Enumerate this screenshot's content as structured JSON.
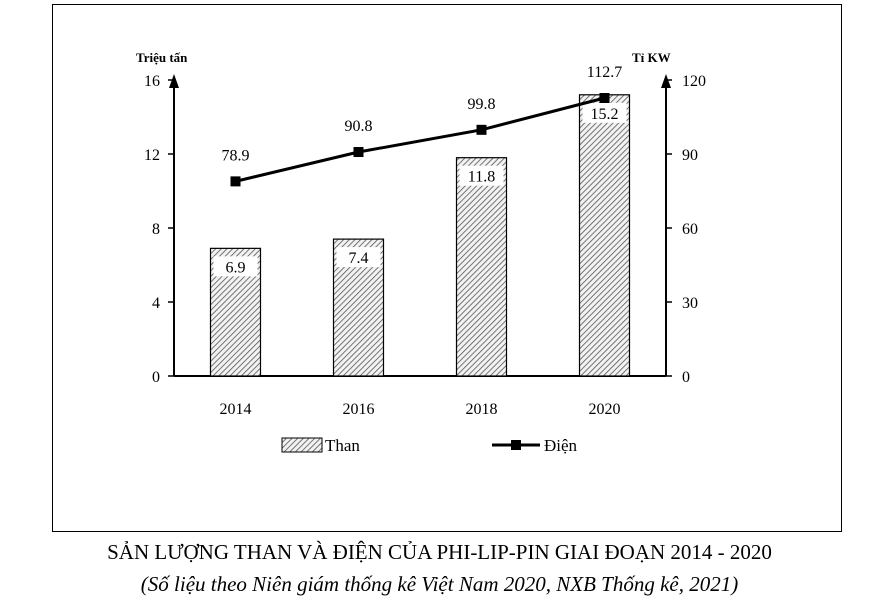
{
  "chart_data": {
    "type": "bar",
    "title": "SẢN LƯỢNG THAN VÀ ĐIỆN CỦA PHI-LIP-PIN GIAI ĐOẠN 2014 - 2020",
    "subtitle": "(Số liệu theo Niên giám thống kê Việt Nam 2020, NXB Thống kê, 2021)",
    "categories": [
      "2014",
      "2016",
      "2018",
      "2020"
    ],
    "y_left": {
      "label": "Triệu tấn",
      "ylim": [
        0,
        16
      ],
      "ticks": [
        0,
        4,
        8,
        12,
        16
      ]
    },
    "y_right": {
      "label": "Tỉ KW",
      "ylim": [
        0,
        120
      ],
      "ticks": [
        0,
        30,
        60,
        90,
        120
      ]
    },
    "series": [
      {
        "name": "Than",
        "type": "bar",
        "axis": "left",
        "values": [
          6.9,
          7.4,
          11.8,
          15.2
        ],
        "labels": [
          "6.9",
          "7.4",
          "11.8",
          "15.2"
        ]
      },
      {
        "name": "Điện",
        "type": "line",
        "axis": "right",
        "values": [
          78.9,
          90.8,
          99.8,
          112.7
        ],
        "labels": [
          "78.9",
          "90.8",
          "99.8",
          "112.7"
        ]
      }
    ],
    "grid": false,
    "legend": "bottom"
  }
}
